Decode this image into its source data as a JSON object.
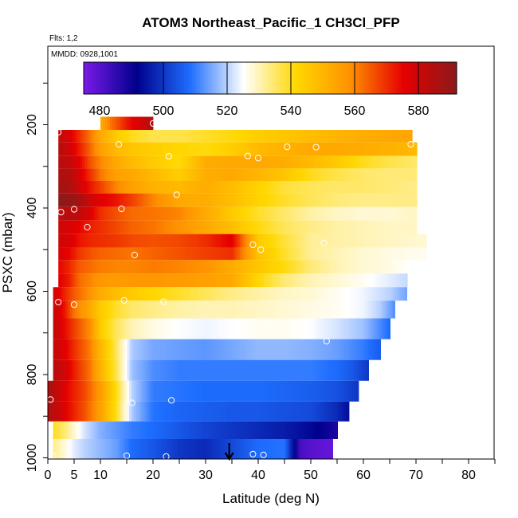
{
  "chart_data": {
    "type": "heatmap",
    "title": "ATOM3 Northeast_Pacific_1 CH3Cl_PFP",
    "notes": {
      "flights": "Flts: 1,2",
      "dates": "MMDD: 0928,1001"
    },
    "xlabel": "Latitude (deg N)",
    "ylabel": "PSXC (mbar)",
    "xlim": [
      0,
      85
    ],
    "ylim": [
      1000,
      0
    ],
    "x_ticks": [
      0,
      5,
      10,
      20,
      30,
      40,
      50,
      60,
      70,
      80
    ],
    "y_ticks": [
      200,
      400,
      600,
      800,
      1000
    ],
    "colorbar": {
      "range": [
        475,
        592
      ],
      "ticks": [
        480,
        500,
        520,
        540,
        560,
        580
      ],
      "colors": [
        "#7a1ae8",
        "#00008c",
        "#1e6eff",
        "#ffffff",
        "#ffd700",
        "#ff9100",
        "#e60000",
        "#8b1a1a"
      ]
    },
    "rows": [
      {
        "p": 200,
        "lat": [
          10,
          12,
          15,
          18,
          20
        ],
        "val": [
          552,
          562,
          572,
          580,
          585
        ]
      },
      {
        "p": 225,
        "lat": [
          2,
          4,
          6,
          8,
          10,
          13,
          16,
          20,
          25,
          30,
          35,
          40,
          45,
          50,
          55,
          60,
          65,
          69
        ],
        "val": [
          582,
          578,
          570,
          562,
          553,
          545,
          540,
          537,
          537,
          539,
          541,
          544,
          546,
          548,
          550,
          552,
          553,
          554
        ]
      },
      {
        "p": 260,
        "lat": [
          2,
          4,
          6,
          8,
          10,
          13,
          16,
          20,
          25,
          30,
          35,
          40,
          45,
          50,
          55,
          60,
          65,
          70
        ],
        "val": [
          585,
          580,
          572,
          564,
          555,
          549,
          546,
          544,
          542,
          541,
          544,
          549,
          551,
          553,
          553,
          552,
          551,
          549
        ]
      },
      {
        "p": 290,
        "lat": [
          2,
          4,
          6,
          8,
          10,
          13,
          16,
          20,
          25,
          30,
          35,
          40,
          45,
          50,
          55,
          60,
          65,
          70
        ],
        "val": [
          584,
          582,
          576,
          566,
          560,
          553,
          549,
          545,
          541,
          552,
          553,
          553,
          552,
          549,
          545,
          540,
          537,
          535
        ]
      },
      {
        "p": 320,
        "lat": [
          2,
          4,
          6,
          8,
          10,
          13,
          16,
          20,
          25,
          30,
          35,
          40,
          45,
          50,
          55,
          60,
          65,
          70
        ],
        "val": [
          586,
          585,
          578,
          570,
          562,
          555,
          553,
          549,
          544,
          552,
          553,
          550,
          546,
          540,
          537,
          535,
          534,
          534
        ]
      },
      {
        "p": 350,
        "lat": [
          2,
          4,
          6,
          8,
          10,
          13,
          16,
          20,
          25,
          30,
          35,
          40,
          45,
          50,
          55,
          60,
          65,
          70
        ],
        "val": [
          588,
          586,
          580,
          573,
          568,
          560,
          555,
          551,
          549,
          552,
          548,
          543,
          538,
          536,
          535,
          535,
          534,
          533
        ]
      },
      {
        "p": 380,
        "lat": [
          2,
          4,
          6,
          8,
          10,
          13,
          16,
          20,
          25,
          30,
          35,
          40,
          45,
          50,
          55,
          60,
          65,
          70
        ],
        "val": [
          592,
          590,
          587,
          580,
          576,
          573,
          568,
          560,
          553,
          552,
          548,
          543,
          539,
          536,
          534,
          533,
          533,
          533
        ]
      },
      {
        "p": 415,
        "lat": [
          2,
          4,
          6,
          8,
          10,
          13,
          16,
          20,
          25,
          32,
          35,
          40,
          45,
          50,
          55,
          60,
          65,
          70
        ],
        "val": [
          582,
          584,
          582,
          577,
          570,
          566,
          563,
          562,
          560,
          550,
          545,
          539,
          535,
          531,
          529,
          528,
          528,
          529
        ]
      },
      {
        "p": 445,
        "lat": [
          2,
          4,
          6,
          8,
          10,
          13,
          16,
          20,
          25,
          30,
          35,
          40,
          45,
          50,
          55,
          60,
          65,
          70
        ],
        "val": [
          580,
          578,
          575,
          572,
          570,
          567,
          564,
          562,
          558,
          553,
          548,
          541,
          536,
          533,
          531,
          530,
          529,
          529
        ]
      },
      {
        "p": 480,
        "lat": [
          2,
          4,
          6,
          8,
          10,
          13,
          16,
          20,
          25,
          30,
          35,
          40,
          45,
          50,
          55,
          60,
          65,
          72
        ],
        "val": [
          580,
          578,
          573,
          571,
          570,
          569,
          567,
          566,
          567,
          570,
          576,
          545,
          538,
          532,
          531,
          530,
          529,
          528
        ]
      },
      {
        "p": 510,
        "lat": [
          2,
          4,
          6,
          8,
          10,
          13,
          16,
          20,
          25,
          30,
          35,
          40,
          45,
          50,
          55,
          60,
          65,
          72
        ],
        "val": [
          578,
          575,
          569,
          566,
          564,
          563,
          562,
          564,
          566,
          568,
          570,
          547,
          539,
          532,
          530,
          528,
          527,
          526
        ]
      },
      {
        "p": 540,
        "lat": [
          2,
          4,
          6,
          8,
          10,
          13,
          16,
          20,
          25,
          30,
          35,
          40,
          45,
          50,
          55,
          60,
          65,
          69
        ],
        "val": [
          575,
          571,
          565,
          563,
          561,
          560,
          560,
          561,
          560,
          558,
          552,
          546,
          541,
          534,
          530,
          528,
          527,
          525
        ]
      },
      {
        "p": 575,
        "lat": [
          2,
          4,
          6,
          8,
          10,
          13,
          16,
          20,
          25,
          30,
          35,
          40,
          45,
          50,
          55,
          60,
          65,
          68
        ],
        "val": [
          576,
          572,
          563,
          560,
          557,
          556,
          557,
          557,
          556,
          555,
          553,
          542,
          534,
          530,
          528,
          526,
          523,
          521
        ]
      },
      {
        "p": 605,
        "lat": [
          1,
          3,
          5,
          8,
          10,
          13,
          16,
          20,
          25,
          30,
          35,
          40,
          45,
          50,
          55,
          60,
          65,
          68
        ],
        "val": [
          580,
          572,
          565,
          558,
          552,
          548,
          545,
          542,
          539,
          536,
          533,
          531,
          529,
          528,
          526,
          524,
          520,
          515
        ]
      },
      {
        "p": 640,
        "lat": [
          1,
          3,
          5,
          8,
          10,
          13,
          16,
          20,
          25,
          30,
          35,
          40,
          45,
          50,
          55,
          60,
          63,
          66
        ],
        "val": [
          582,
          574,
          562,
          553,
          545,
          539,
          535,
          533,
          531,
          530,
          530,
          529,
          528,
          527,
          526,
          524,
          520,
          512
        ]
      },
      {
        "p": 690,
        "lat": [
          1,
          3,
          5,
          8,
          10,
          13,
          16,
          20,
          25,
          30,
          35,
          40,
          45,
          50,
          55,
          60,
          62,
          65
        ],
        "val": [
          583,
          575,
          568,
          559,
          545,
          536,
          530,
          527,
          525,
          524,
          525,
          526,
          526,
          525,
          522,
          518,
          514,
          508
        ]
      },
      {
        "p": 740,
        "lat": [
          1,
          3,
          5,
          8,
          10,
          13,
          16,
          20,
          25,
          30,
          35,
          40,
          45,
          50,
          55,
          60,
          63
        ],
        "val": [
          582,
          577,
          570,
          561,
          550,
          536,
          519,
          515,
          514,
          513,
          515,
          517,
          517,
          516,
          514,
          510,
          506
        ]
      },
      {
        "p": 790,
        "lat": [
          1,
          3,
          5,
          8,
          10,
          13,
          16,
          20,
          25,
          30,
          35,
          40,
          45,
          50,
          55,
          58,
          61
        ],
        "val": [
          584,
          580,
          572,
          562,
          551,
          537,
          518,
          512,
          510,
          510,
          510,
          510,
          510,
          510,
          508,
          505,
          500
        ]
      },
      {
        "p": 840,
        "lat": [
          0,
          2,
          4,
          7,
          10,
          13,
          16,
          20,
          25,
          30,
          35,
          40,
          45,
          50,
          55,
          59
        ],
        "val": [
          586,
          581,
          574,
          567,
          556,
          541,
          520,
          510,
          509,
          508,
          508,
          508,
          507,
          506,
          504,
          500
        ]
      },
      {
        "p": 890,
        "lat": [
          0,
          2,
          4,
          7,
          10,
          13,
          16,
          20,
          25,
          30,
          35,
          40,
          45,
          50,
          55,
          57
        ],
        "val": [
          585,
          581,
          574,
          566,
          555,
          540,
          519,
          509,
          507,
          506,
          505,
          505,
          504,
          503,
          498,
          494
        ]
      },
      {
        "p": 935,
        "lat": [
          1,
          3,
          5,
          7,
          10,
          13,
          16,
          20,
          25,
          30,
          35,
          40,
          45,
          50,
          53,
          55
        ],
        "val": [
          540,
          535,
          528,
          522,
          516,
          513,
          510,
          508,
          505,
          502,
          500,
          498,
          496,
          493,
          490,
          488
        ]
      },
      {
        "p": 975,
        "lat": [
          1,
          3,
          5,
          7,
          10,
          13,
          16,
          20,
          25,
          30,
          35,
          40,
          45,
          48,
          51,
          54
        ],
        "val": [
          533,
          528,
          523,
          520,
          517,
          514,
          508,
          505,
          500,
          498,
          503,
          508,
          509,
          482,
          479,
          478
        ]
      }
    ],
    "samples": [
      {
        "lat": 2,
        "p": 218
      },
      {
        "lat": 20,
        "p": 197
      },
      {
        "lat": 13.5,
        "p": 247
      },
      {
        "lat": 45.5,
        "p": 253
      },
      {
        "lat": 51,
        "p": 254
      },
      {
        "lat": 69,
        "p": 247
      },
      {
        "lat": 23,
        "p": 276
      },
      {
        "lat": 38,
        "p": 275
      },
      {
        "lat": 40,
        "p": 280
      },
      {
        "lat": 24.5,
        "p": 368
      },
      {
        "lat": 2.5,
        "p": 410
      },
      {
        "lat": 5,
        "p": 403
      },
      {
        "lat": 14,
        "p": 402
      },
      {
        "lat": 7.5,
        "p": 446
      },
      {
        "lat": 39,
        "p": 488
      },
      {
        "lat": 40.5,
        "p": 500
      },
      {
        "lat": 52.5,
        "p": 484
      },
      {
        "lat": 16.5,
        "p": 513
      },
      {
        "lat": 2,
        "p": 626
      },
      {
        "lat": 5,
        "p": 632
      },
      {
        "lat": 14.5,
        "p": 622
      },
      {
        "lat": 22,
        "p": 625
      },
      {
        "lat": 42,
        "p": 681
      },
      {
        "lat": 39,
        "p": 705
      },
      {
        "lat": 53,
        "p": 720
      },
      {
        "lat": 16,
        "p": 868
      },
      {
        "lat": 23.5,
        "p": 862
      },
      {
        "lat": 0.5,
        "p": 860
      },
      {
        "lat": 1,
        "p": 995
      },
      {
        "lat": 15,
        "p": 995
      },
      {
        "lat": 22.5,
        "p": 997
      },
      {
        "lat": 39,
        "p": 991
      },
      {
        "lat": 41,
        "p": 993
      },
      {
        "lat": 47.5,
        "p": 1010
      }
    ],
    "arrow_lat": 34.5
  }
}
